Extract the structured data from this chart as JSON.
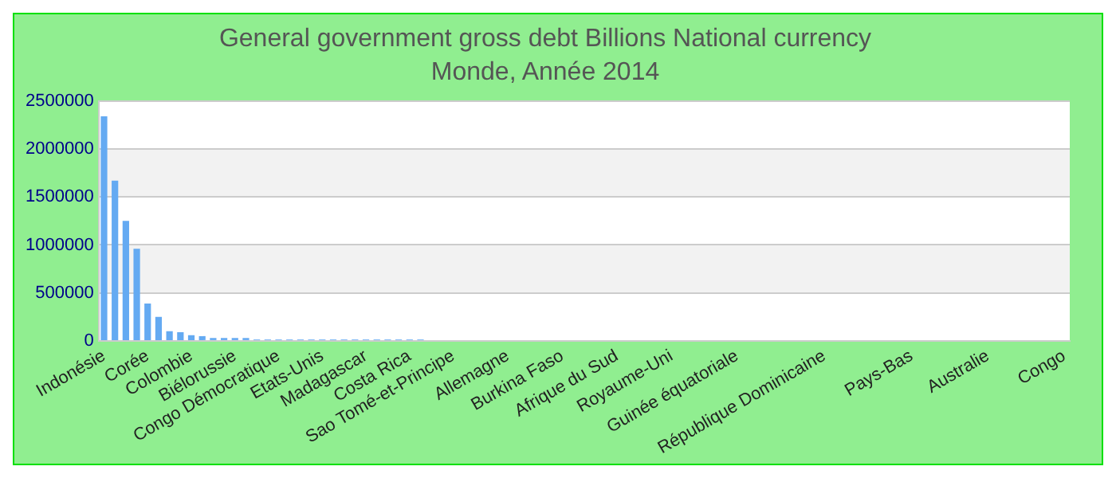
{
  "chart_data": {
    "type": "bar",
    "title": "General government gross debt Billions National currency",
    "subtitle": "Monde, Année 2014",
    "categories": [
      "Indonésie",
      null,
      null,
      null,
      "Corée",
      null,
      null,
      null,
      "Colombie",
      null,
      null,
      null,
      "Biélorussie",
      null,
      null,
      null,
      "Congo Démocratique",
      null,
      null,
      null,
      "Etats-Unis",
      null,
      null,
      null,
      "Madagascar",
      null,
      null,
      null,
      "Costa Rica",
      null,
      null,
      null,
      "Sao Tomé-et-Principe",
      null,
      null,
      null,
      null,
      "Allemagne",
      null,
      null,
      null,
      null,
      "Burkina Faso",
      null,
      null,
      null,
      null,
      "Afrique du Sud",
      null,
      null,
      null,
      null,
      "Royaume-Uni",
      null,
      null,
      null,
      null,
      null,
      "Guinée équatoriale",
      null,
      null,
      null,
      null,
      null,
      null,
      null,
      "République Dominicaine",
      null,
      null,
      null,
      null,
      null,
      null,
      null,
      "Pays-Bas",
      null,
      null,
      null,
      null,
      null,
      null,
      "Australie",
      null,
      null,
      null,
      null,
      null,
      null,
      "Congo"
    ],
    "values": [
      2340000,
      1670000,
      1250000,
      960000,
      390000,
      250000,
      100000,
      90000,
      60000,
      50000,
      30000,
      30000,
      30000,
      30000,
      15000,
      15000,
      15000,
      15000,
      15000,
      15000,
      15000,
      15000,
      15000,
      15000,
      15000,
      15000,
      15000,
      15000,
      15000,
      15000,
      0,
      0,
      0,
      0,
      0,
      0,
      0,
      0,
      0,
      0,
      0,
      0,
      0,
      0,
      0,
      0,
      0,
      0,
      0,
      0,
      0,
      0,
      0,
      0,
      0,
      0,
      0,
      0,
      0,
      0,
      0,
      0,
      0,
      0,
      0,
      0,
      0,
      0,
      0,
      0,
      0,
      0,
      0,
      0,
      0,
      0,
      0,
      0,
      0,
      0,
      0,
      0,
      0,
      0,
      0,
      0,
      0,
      0,
      0
    ],
    "color": "#64aaf2",
    "ylim": [
      0,
      2500000
    ],
    "yticks": [
      0,
      500000,
      1000000,
      1500000,
      2000000,
      2500000
    ],
    "grid": "y",
    "legend": false
  }
}
